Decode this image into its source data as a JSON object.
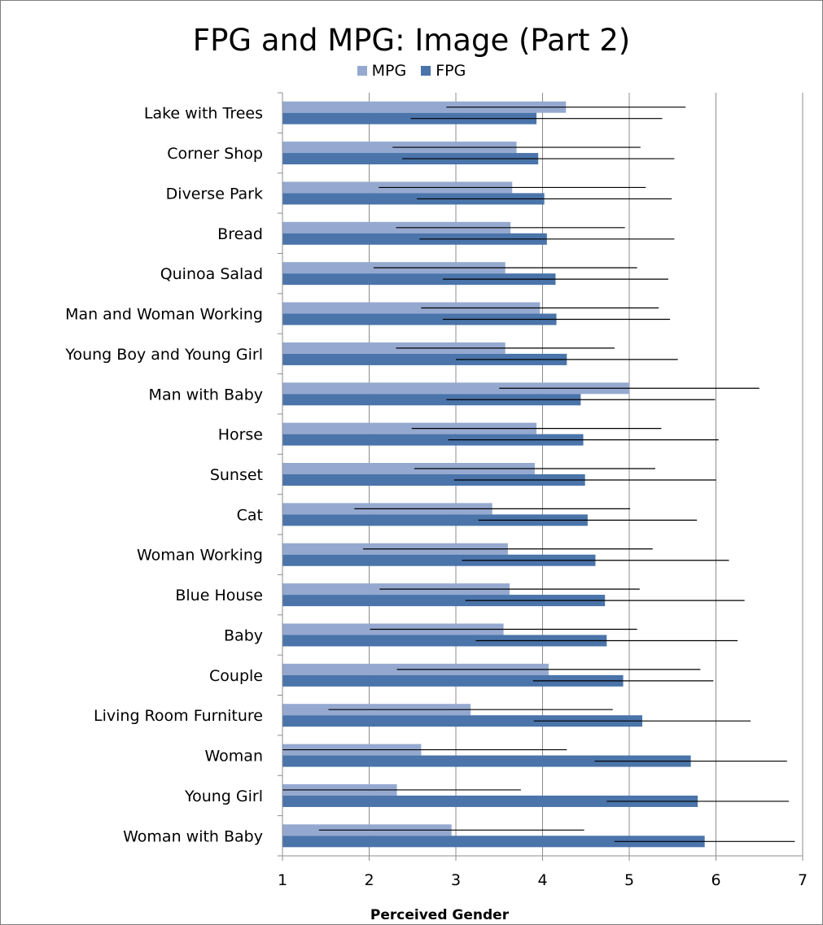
{
  "chart_data": {
    "type": "bar",
    "orientation": "horizontal",
    "title": "FPG and MPG: Image (Part 2)",
    "xlabel": "Perceived Gender",
    "ylabel": "",
    "xlim": [
      1,
      7
    ],
    "xticks": [
      1,
      2,
      3,
      4,
      5,
      6,
      7
    ],
    "grid": true,
    "legend_position": "top",
    "error_bars": true,
    "categories": [
      "Lake with Trees",
      "Corner Shop",
      "Diverse Park",
      "Bread",
      "Quinoa Salad",
      "Man and Woman Working",
      "Young Boy and Young Girl",
      "Man with Baby",
      "Horse",
      "Sunset",
      "Cat",
      "Woman Working",
      "Blue House",
      "Baby",
      "Couple",
      "Living Room Furniture",
      "Woman",
      "Young Girl",
      "Woman with Baby"
    ],
    "series": [
      {
        "name": "MPG",
        "color": "#95a9d0",
        "values": [
          4.27,
          3.7,
          3.65,
          3.63,
          3.57,
          3.97,
          3.57,
          5.0,
          3.93,
          3.91,
          3.42,
          3.6,
          3.62,
          3.55,
          4.07,
          3.17,
          2.6,
          2.32,
          2.95
        ],
        "errors": [
          1.38,
          1.43,
          1.54,
          1.32,
          1.52,
          1.37,
          1.26,
          1.5,
          1.44,
          1.39,
          1.59,
          1.67,
          1.5,
          1.54,
          1.75,
          1.64,
          1.68,
          1.43,
          1.53
        ]
      },
      {
        "name": "FPG",
        "color": "#4a74aa",
        "values": [
          3.93,
          3.95,
          4.02,
          4.05,
          4.15,
          4.16,
          4.28,
          4.44,
          4.47,
          4.49,
          4.52,
          4.61,
          4.72,
          4.74,
          4.93,
          5.15,
          5.71,
          5.79,
          5.87
        ],
        "errors": [
          1.45,
          1.57,
          1.47,
          1.47,
          1.3,
          1.31,
          1.28,
          1.55,
          1.56,
          1.51,
          1.26,
          1.54,
          1.61,
          1.51,
          1.04,
          1.25,
          1.11,
          1.05,
          1.04
        ]
      }
    ]
  }
}
